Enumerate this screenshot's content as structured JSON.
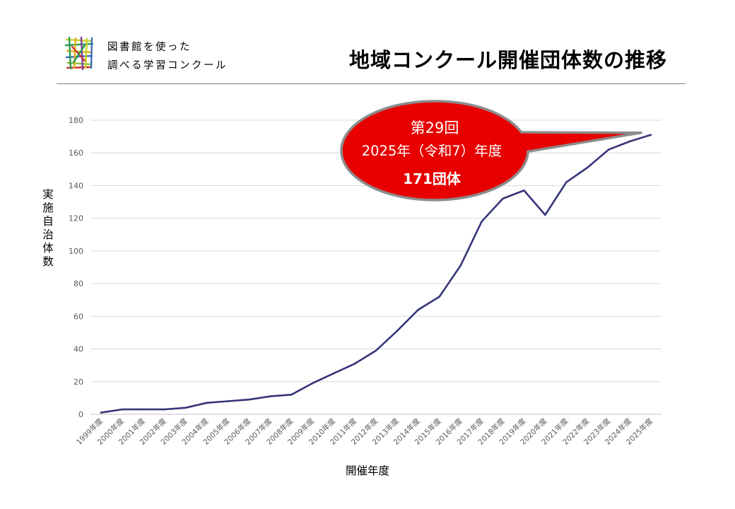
{
  "header": {
    "brand_line1": "図書館を使った",
    "brand_line2": "調べる学習コンクール",
    "title": "地域コンクール開催団体数の推移"
  },
  "colors": {
    "line": "#36357a",
    "grid": "#d9d9d9",
    "axis": "#bfbfbf",
    "callout_fill": "#e80000",
    "callout_stroke": "#8c8c8c",
    "text": "#000000",
    "tick_text": "#595959"
  },
  "chart_data": {
    "type": "line",
    "title": "地域コンクール開催団体数の推移",
    "xlabel": "開催年度",
    "ylabel": "実施自治体数",
    "ylim": [
      0,
      180
    ],
    "yticks": [
      0,
      20,
      40,
      60,
      80,
      100,
      120,
      140,
      160,
      180
    ],
    "grid": true,
    "legend": "none",
    "categories": [
      "1999年度",
      "2000年度",
      "2001年度",
      "2002年度",
      "2003年度",
      "2004年度",
      "2005年度",
      "2006年度",
      "2007年度",
      "2008年度",
      "2009年度",
      "2010年度",
      "2011年度",
      "2012年度",
      "2013年度",
      "2014年度",
      "2015年度",
      "2016年度",
      "2017年度",
      "2018年度",
      "2019年度",
      "2020年度",
      "2021年度",
      "2022年度",
      "2023年度",
      "2024年度",
      "2025年度"
    ],
    "series": [
      {
        "values": [
          1,
          3,
          3,
          3,
          4,
          7,
          8,
          9,
          11,
          12,
          19,
          25,
          31,
          39,
          51,
          64,
          72,
          91,
          118,
          132,
          137,
          122,
          142,
          151,
          162,
          167,
          171
        ]
      }
    ],
    "annotation": {
      "line1": "第29回",
      "line2": "2025年（令和7）年度",
      "line3": "171団体"
    }
  }
}
